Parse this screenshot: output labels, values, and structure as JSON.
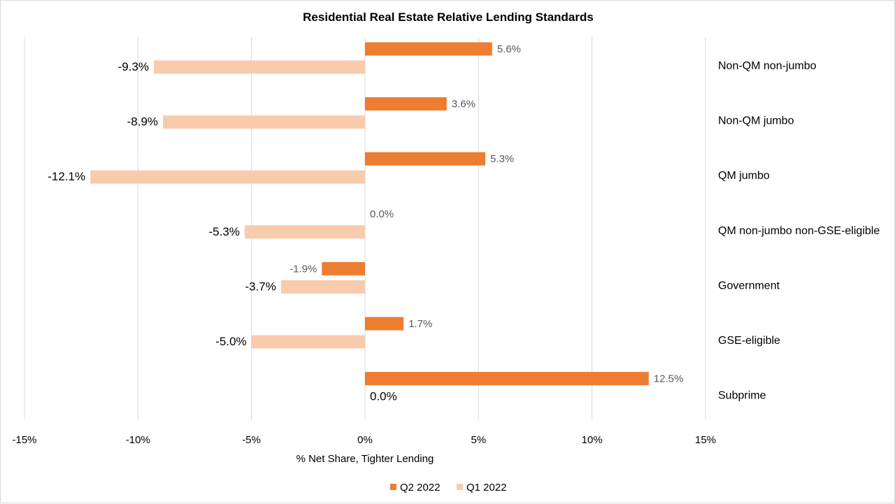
{
  "chart_data": {
    "type": "bar",
    "orientation": "horizontal",
    "title": "Residential Real Estate Relative Lending Standards",
    "xlabel": "% Net Share, Tighter Lending",
    "ylabel": "",
    "xlim": [
      -15,
      15
    ],
    "xticks": [
      -15,
      -10,
      -5,
      0,
      5,
      10,
      15
    ],
    "xtick_labels": [
      "-15%",
      "-10%",
      "-5%",
      "0%",
      "5%",
      "10%",
      "15%"
    ],
    "grid": true,
    "legend_position": "bottom",
    "categories": [
      "Non-QM non-jumbo",
      "Non-QM jumbo",
      "QM jumbo",
      "QM non-jumbo non-GSE-eligible",
      "Government",
      "GSE-eligible",
      "Subprime"
    ],
    "series": [
      {
        "name": "Q2 2022",
        "color": "#ed7d31",
        "values": [
          5.6,
          3.6,
          5.3,
          0.0,
          -1.9,
          1.7,
          12.5
        ],
        "labels": [
          "5.6%",
          "3.6%",
          "5.3%",
          "0.0%",
          "-1.9%",
          "1.7%",
          "12.5%"
        ]
      },
      {
        "name": "Q1 2022",
        "color": "#f8cbad",
        "values": [
          -9.3,
          -8.9,
          -12.1,
          -5.3,
          -3.7,
          -5.0,
          0.0
        ],
        "labels": [
          "-9.3%",
          "-8.9%",
          "-12.1%",
          "-5.3%",
          "-3.7%",
          "-5.0%",
          "0.0%"
        ]
      }
    ]
  }
}
